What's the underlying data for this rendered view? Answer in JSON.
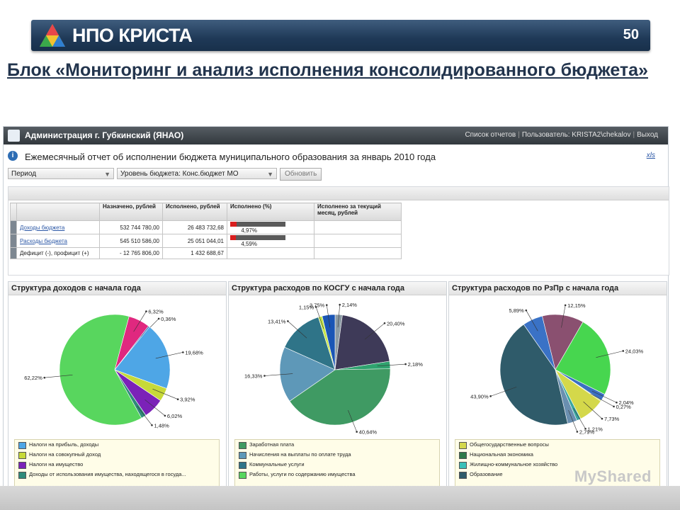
{
  "slide": {
    "brand": "НПО КРИСТА",
    "number": "50",
    "title": "Блок «Мониторинг и анализ исполнения консолидированного бюджета»"
  },
  "app": {
    "title": "Администрация г. Губкинский (ЯНАО)",
    "links": {
      "reports": "Список отчетов",
      "user": "Пользователь: KRISTA2\\chekalov",
      "logout": "Выход"
    },
    "report_title": "Ежемесячный отчет об исполнении бюджета муниципального образования за январь 2010 года",
    "xls": "xls",
    "filters": {
      "period": "Период",
      "level": "Уровень бюджета: Конс.бюджет МО",
      "refresh": "Обновить"
    }
  },
  "table": {
    "headers": [
      "Назначено, рублей",
      "Исполнено, рублей",
      "Исполнено (%)",
      "Исполнено за текущий месяц, рублей"
    ],
    "rows": [
      {
        "label": "Доходы бюджета",
        "assigned": "532 744 780,00",
        "executed": "26 483 732,68",
        "percent": "4,97%",
        "percent_value": 4.97
      },
      {
        "label": "Расходы бюджета",
        "assigned": "545 510 586,00",
        "executed": "25 051 044,01",
        "percent": "4,59%",
        "percent_value": 4.59
      },
      {
        "label": "Дефицит (-), профицит (+)",
        "assigned": "- 12 765 806,00",
        "executed": "1 432 688,67",
        "percent": "",
        "percent_value": null
      }
    ]
  },
  "chart_data": [
    {
      "type": "pie",
      "title": "Структура доходов с начала года",
      "labels": [
        "6,32%",
        "0,36%",
        "19,68%",
        "3,92%",
        "6,02%",
        "1,48%",
        "62,22%"
      ],
      "values": [
        6.32,
        0.36,
        19.68,
        3.92,
        6.02,
        1.48,
        62.22
      ],
      "colors": [
        "#e0287f",
        "#1d5aa8",
        "#4ea6e6",
        "#c7d938",
        "#7b22b8",
        "#2f8a7a",
        "#58d65e"
      ],
      "legend": [
        {
          "label": "Налоги на прибыль, доходы",
          "color": "#4ea6e6"
        },
        {
          "label": "Налоги на совокупный доход",
          "color": "#c7d938"
        },
        {
          "label": "Налоги на имущество",
          "color": "#7b22b8"
        },
        {
          "label": "Доходы от использования имущества, находящегося в госуда...",
          "color": "#2f8a7a"
        }
      ]
    },
    {
      "type": "pie",
      "title": "Структура расходов по КОСГУ с начала года",
      "labels": [
        "2,14%",
        "20,40%",
        "2,18%",
        "40,64%",
        "16,33%",
        "13,41%",
        "1,15%",
        "3,75%"
      ],
      "values": [
        2.14,
        20.4,
        2.18,
        40.64,
        16.33,
        13.41,
        1.15,
        3.75
      ],
      "colors": [
        "#8b9aa4",
        "#3e3a58",
        "#2fa36f",
        "#3f9a63",
        "#5e98b8",
        "#2f7488",
        "#c8e64a",
        "#1a55b5"
      ],
      "legend": [
        {
          "label": "Заработная плата",
          "color": "#3f9a63"
        },
        {
          "label": "Начисления на выплаты по оплате труда",
          "color": "#5e98b8"
        },
        {
          "label": "Коммунальные услуги",
          "color": "#2f7488"
        },
        {
          "label": "Работы, услуги по содержанию имущества",
          "color": "#58d65e"
        }
      ]
    },
    {
      "type": "pie",
      "title": "Структура расходов по РзПр с начала года",
      "labels": [
        "24,03%",
        "2,04%",
        "0,27%",
        "7,73%",
        "1,21%",
        "2,79%",
        "43,90%",
        "5,89%",
        "12,15%"
      ],
      "values": [
        24.03,
        2.04,
        0.27,
        7.73,
        1.21,
        2.79,
        43.9,
        5.89,
        12.15
      ],
      "colors": [
        "#47d64f",
        "#3b6fc2",
        "#b8d438",
        "#d4d84a",
        "#3aa6a0",
        "#6a8fb0",
        "#2f5b6a",
        "#3a72c6",
        "#8a5070"
      ],
      "legend": [
        {
          "label": "Общегосударственные вопросы",
          "color": "#d4d84a"
        },
        {
          "label": "Национальная экономика",
          "color": "#2f7a4a"
        },
        {
          "label": "Жилищно-коммунальное хозяйство",
          "color": "#3ac0b8"
        },
        {
          "label": "Образование",
          "color": "#2f5b6a"
        }
      ]
    }
  ],
  "watermark": "MyShared"
}
